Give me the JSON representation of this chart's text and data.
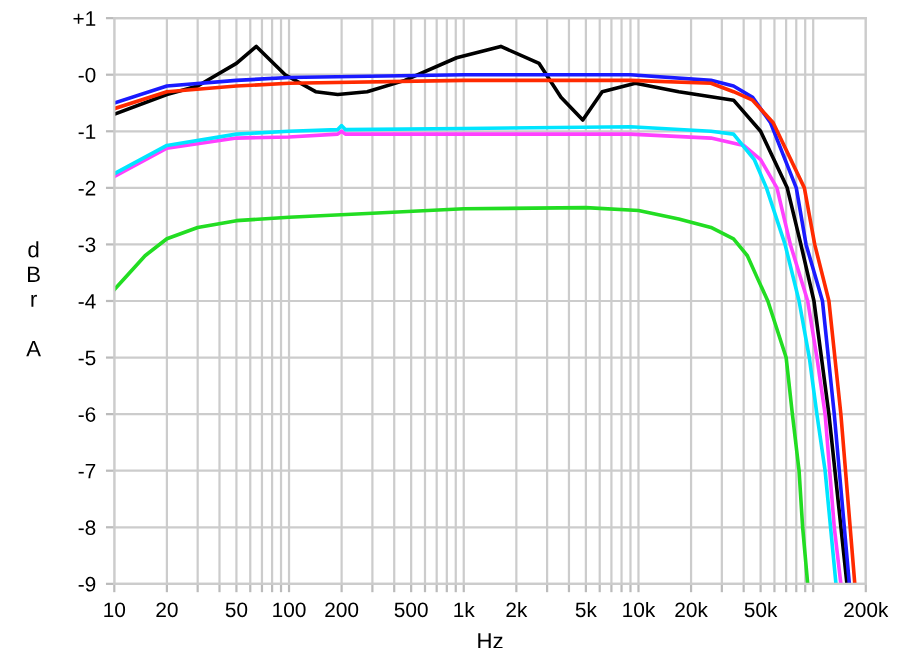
{
  "chart_data": {
    "type": "line",
    "xlabel": "Hz",
    "ylabel": "dBr A",
    "log": "x",
    "grid": true,
    "line_style": "solid",
    "marker": "none",
    "xlim": [
      10,
      200000
    ],
    "ylim": [
      -9,
      1
    ],
    "xticks": [
      10,
      20,
      {
        "value": 30,
        "label": null
      },
      {
        "value": 40,
        "label": null
      },
      50,
      {
        "value": 60,
        "label": null
      },
      {
        "value": 70,
        "label": null
      },
      {
        "value": 80,
        "label": null
      },
      {
        "value": 90,
        "label": null
      },
      100,
      200,
      {
        "value": 300,
        "label": null
      },
      {
        "value": 400,
        "label": null
      },
      500,
      {
        "value": 600,
        "label": null
      },
      {
        "value": 700,
        "label": null
      },
      {
        "value": 800,
        "label": null
      },
      {
        "value": 900,
        "label": null
      },
      {
        "value": 1000,
        "label": "1k"
      },
      {
        "value": 2000,
        "label": "2k"
      },
      {
        "value": 3000,
        "label": null
      },
      {
        "value": 4000,
        "label": null
      },
      {
        "value": 5000,
        "label": "5k"
      },
      {
        "value": 6000,
        "label": null
      },
      {
        "value": 7000,
        "label": null
      },
      {
        "value": 8000,
        "label": null
      },
      {
        "value": 9000,
        "label": null
      },
      {
        "value": 10000,
        "label": "10k"
      },
      {
        "value": 20000,
        "label": "20k"
      },
      {
        "value": 30000,
        "label": null
      },
      {
        "value": 40000,
        "label": null
      },
      {
        "value": 50000,
        "label": "50k"
      },
      {
        "value": 60000,
        "label": null
      },
      {
        "value": 70000,
        "label": null
      },
      {
        "value": 80000,
        "label": null
      },
      {
        "value": 90000,
        "label": null
      },
      {
        "value": 100000,
        "label": null
      },
      {
        "value": 200000,
        "label": "200k"
      }
    ],
    "yticks": [
      {
        "value": 1,
        "label": "+1"
      },
      {
        "value": 0,
        "label": "-0"
      },
      -1,
      -2,
      -3,
      -4,
      -5,
      -6,
      -7,
      -8,
      -9
    ],
    "series": [
      {
        "color": "#22dd22",
        "x": [
          10,
          15,
          20,
          30,
          50,
          100,
          300,
          1000,
          5000,
          10000,
          17000,
          26000,
          35000,
          42000,
          48000,
          55000,
          70000,
          76000,
          83000,
          87000,
          93000
        ],
        "values": [
          -3.8,
          -3.2,
          -2.9,
          -2.7,
          -2.58,
          -2.52,
          -2.45,
          -2.37,
          -2.35,
          -2.4,
          -2.55,
          -2.7,
          -2.9,
          -3.2,
          -3.6,
          -4.0,
          -5,
          -6,
          -7,
          -8,
          -9
        ]
      },
      {
        "color": "#ff40ff",
        "x": [
          10,
          20,
          50,
          100,
          190,
          200,
          210,
          1000,
          9000,
          26000,
          40000,
          50000,
          62000,
          74000,
          93000,
          105000,
          117000,
          132000,
          144000
        ],
        "values": [
          -1.8,
          -1.3,
          -1.12,
          -1.1,
          -1.05,
          -1.0,
          -1.05,
          -1.05,
          -1.05,
          -1.12,
          -1.25,
          -1.5,
          -2,
          -3,
          -4,
          -5,
          -6,
          -8,
          -9
        ]
      },
      {
        "color": "#00e5ff",
        "x": [
          10,
          20,
          50,
          100,
          190,
          200,
          210,
          1000,
          9000,
          26000,
          35000,
          46000,
          54000,
          69000,
          83000,
          95000,
          105000,
          117000,
          135000
        ],
        "values": [
          -1.75,
          -1.25,
          -1.05,
          -1.0,
          -0.97,
          -0.9,
          -0.97,
          -0.95,
          -0.92,
          -1.0,
          -1.05,
          -1.5,
          -2,
          -3,
          -4,
          -5,
          -6,
          -7,
          -9
        ]
      },
      {
        "color": "#000000",
        "x": [
          10,
          20,
          30,
          50,
          65,
          95,
          142,
          190,
          280,
          460,
          910,
          1630,
          2700,
          3600,
          4800,
          6200,
          9600,
          17000,
          35000,
          50000,
          71000,
          85000,
          101000,
          123000,
          156000
        ],
        "values": [
          -0.7,
          -0.35,
          -0.2,
          0.2,
          0.5,
          0.0,
          -0.3,
          -0.35,
          -0.3,
          -0.1,
          0.3,
          0.5,
          0.2,
          -0.4,
          -0.8,
          -0.3,
          -0.15,
          -0.3,
          -0.45,
          -1,
          -2,
          -3,
          -4,
          -6,
          -9
        ]
      },
      {
        "color": "#1a1aff",
        "x": [
          10,
          20,
          50,
          100,
          1000,
          9000,
          26000,
          35000,
          45000,
          57000,
          80000,
          91000,
          113000,
          132000,
          161000
        ],
        "values": [
          -0.5,
          -0.2,
          -0.1,
          -0.05,
          0.0,
          0.0,
          -0.1,
          -0.2,
          -0.4,
          -0.85,
          -2,
          -3,
          -4,
          -6,
          -9
        ]
      },
      {
        "color": "#ff2a00",
        "x": [
          10,
          20,
          50,
          100,
          1000,
          9000,
          26000,
          35000,
          45000,
          59000,
          89000,
          102000,
          123000,
          144000,
          173000
        ],
        "values": [
          -0.6,
          -0.3,
          -0.2,
          -0.15,
          -0.1,
          -0.1,
          -0.15,
          -0.3,
          -0.45,
          -0.85,
          -2,
          -3,
          -4,
          -6,
          -9
        ]
      }
    ]
  }
}
